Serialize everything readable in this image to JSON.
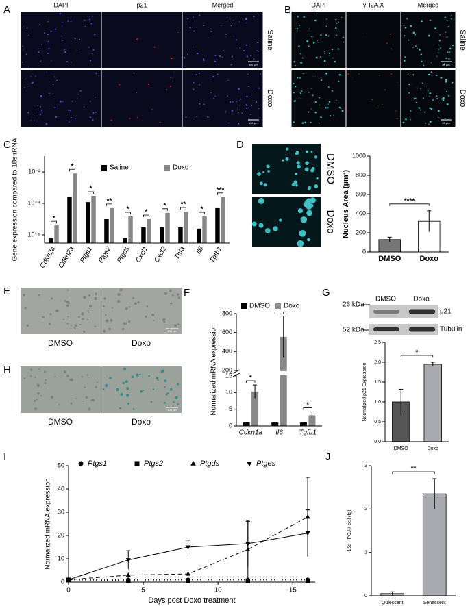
{
  "image_panels": [
    {
      "panel": "A",
      "columns": [
        "DAPI",
        "p21",
        "Merged"
      ],
      "rows": [
        "Saline",
        "Doxo"
      ],
      "scale_bars": [
        "100 µm",
        "100 µm"
      ]
    },
    {
      "panel": "B",
      "columns": [
        "DAPI",
        "γH2A.X",
        "Merged"
      ],
      "rows": [
        "Saline",
        "Doxo"
      ],
      "scale_bars": [
        "50 µm",
        "50 µm"
      ]
    },
    {
      "panel": "E",
      "labels": [
        "DMSO",
        "Doxo"
      ],
      "scale_bar": "100 µm"
    },
    {
      "panel": "H",
      "labels": [
        "DMSO",
        "Doxo"
      ],
      "scale_bar": "100 µm"
    }
  ],
  "chart_data": [
    {
      "panel": "C",
      "type": "bar",
      "ylabel": "Gene expression compared to 18s rRNA",
      "log_scale": true,
      "categories": [
        "Cdkn2a",
        "Cdkn2a",
        "Ptgs1",
        "Ptgs2",
        "Ptgds",
        "Cxcl1",
        "Cxcl2",
        "Tnfa",
        "Il6",
        "Tgfb1"
      ],
      "series": [
        {
          "name": "Saline",
          "color": "#000000",
          "values": [
            6e-07,
            0.00025,
            0.00012,
            1e-05,
            6e-07,
            3e-06,
            3e-06,
            3e-06,
            2.5e-06,
            5e-05
          ]
        },
        {
          "name": "Doxo",
          "color": "#888888",
          "values": [
            4e-06,
            0.008,
            0.0003,
            5e-05,
            1.5e-05,
            1e-05,
            2.5e-05,
            3e-05,
            1.5e-05,
            0.00025
          ]
        }
      ],
      "ylim": [
        3e-07,
        0.1
      ],
      "yticks": [
        {
          "value": 1e-06,
          "label": "10⁻⁶"
        },
        {
          "value": 0.0001,
          "label": "10⁻⁴"
        },
        {
          "value": 0.01,
          "label": "10⁻²"
        }
      ],
      "significance": [
        "*",
        "*",
        "*",
        "**",
        "*",
        "*",
        "*",
        "**",
        "*",
        "***"
      ]
    },
    {
      "panel": "D",
      "type": "bar",
      "ylabel": "Nucleus Area (µm²)",
      "image_labels": [
        "DMSO",
        "Doxo"
      ],
      "categories": [
        "DMSO",
        "Doxo"
      ],
      "values": [
        130,
        320
      ],
      "errors": [
        25,
        110
      ],
      "colors": [
        "#777777",
        "#ffffff"
      ],
      "ylim": [
        0,
        1000
      ],
      "yticks": [
        0,
        200,
        400,
        600,
        800,
        1000
      ],
      "significance": [
        "****"
      ]
    },
    {
      "panel": "F",
      "type": "bar",
      "ylabel": "Normalized mRNA expression",
      "categories": [
        "Cdkn1a",
        "Il6",
        "Tgfb1"
      ],
      "series": [
        {
          "name": "DMSO",
          "color": "#000000",
          "values": [
            1,
            1,
            1
          ],
          "errors": [
            0.1,
            0.1,
            0.1
          ]
        },
        {
          "name": "Doxo",
          "color": "#888888",
          "values": [
            10.3,
            555,
            3.2
          ],
          "errors": [
            2,
            220,
            1
          ]
        }
      ],
      "ylim": [
        0,
        800
      ],
      "axis_break": [
        15,
        200
      ],
      "yticks": [
        0,
        5,
        10,
        15,
        200,
        400,
        600,
        800
      ],
      "significance": [
        "*",
        "*",
        "*"
      ]
    },
    {
      "panel": "G",
      "type": "bar",
      "ylabel": "Normalized p21 Expression",
      "blot": {
        "markers": [
          "26 kDa",
          "52 kDa"
        ],
        "lanes": [
          "DMSO",
          "Doxo"
        ],
        "bands": [
          "p21",
          "Tubulin"
        ]
      },
      "categories": [
        "DMSO",
        "Doxo"
      ],
      "values": [
        1.0,
        1.95
      ],
      "errors": [
        0.32,
        0.05
      ],
      "colors": [
        "#555555",
        "#a9a9b0"
      ],
      "ylim": [
        0,
        2.5
      ],
      "yticks": [
        {
          "value": 0,
          "label": "0.0"
        },
        0.5,
        {
          "value": 1,
          "label": "1.0"
        },
        1.5,
        {
          "value": 2,
          "label": "2.0"
        },
        2.5
      ],
      "significance": [
        "*"
      ]
    },
    {
      "panel": "I",
      "type": "line",
      "xlabel": "Days post Doxo treatment",
      "ylabel": "Normalized mRNA expression",
      "x": [
        0,
        4,
        8,
        12,
        16
      ],
      "series": [
        {
          "name": "Ptgs1",
          "marker": "circle",
          "dash": "dotted",
          "values": [
            1,
            1,
            1,
            1,
            1
          ]
        },
        {
          "name": "Ptgs2",
          "marker": "square",
          "dash": "dotted",
          "values": [
            1,
            0.6,
            0.5,
            0.5,
            0.5
          ]
        },
        {
          "name": "Ptgds",
          "marker": "triangle",
          "dash": "dashed",
          "values": [
            1,
            3,
            3.5,
            14,
            28
          ],
          "errors": [
            0,
            0,
            0,
            12,
            17
          ]
        },
        {
          "name": "Ptges",
          "marker": "triangle-down",
          "dash": "solid",
          "values": [
            1,
            9.5,
            15,
            16.5,
            21
          ],
          "errors": [
            0,
            4,
            3,
            10,
            10
          ]
        }
      ],
      "xlim": [
        0,
        16.5
      ],
      "xticks": [
        0,
        5,
        10,
        15
      ],
      "ylim": [
        0,
        50
      ],
      "yticks": [
        0,
        10,
        20,
        30,
        40,
        50
      ]
    },
    {
      "panel": "J",
      "type": "bar",
      "ylabel": "15d - PGJ₂/ cell (fg)",
      "categories": [
        "Quiescent",
        "Senescent"
      ],
      "values": [
        0.05,
        2.35
      ],
      "errors": [
        0.04,
        0.35
      ],
      "color": "#a9a9b0",
      "ylim": [
        0,
        3
      ],
      "yticks": [
        0,
        1,
        2,
        3
      ],
      "significance": [
        "**"
      ]
    }
  ]
}
